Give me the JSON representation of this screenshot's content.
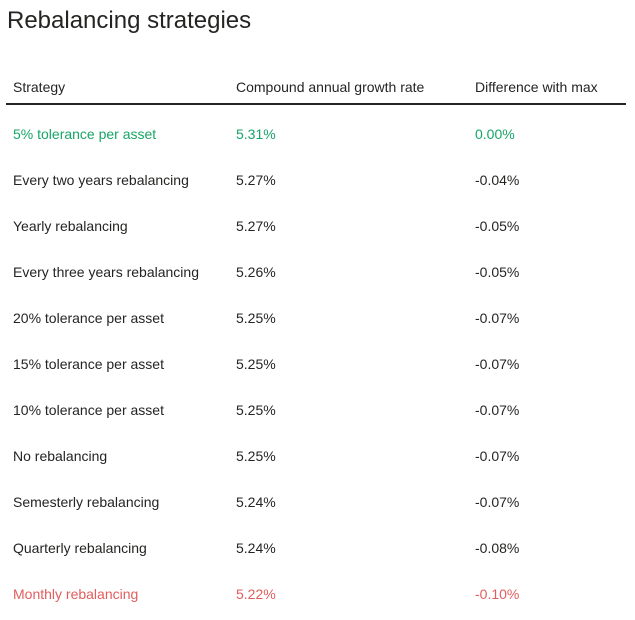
{
  "page": {
    "title": "Rebalancing strategies"
  },
  "colors": {
    "best": "#18a566",
    "worst": "#e25d5d",
    "text": "#252423",
    "divider": "#252423",
    "background": "#ffffff"
  },
  "chart_data": {
    "type": "table",
    "title": "Rebalancing strategies",
    "columns": [
      "Strategy",
      "Compound annual growth rate",
      "Difference with max"
    ],
    "rows": [
      {
        "strategy": "5% tolerance per asset",
        "cagr": "5.31%",
        "diff": "0.00%",
        "highlight": "best"
      },
      {
        "strategy": "Every two years rebalancing",
        "cagr": "5.27%",
        "diff": "-0.04%",
        "highlight": null
      },
      {
        "strategy": "Yearly rebalancing",
        "cagr": "5.27%",
        "diff": "-0.05%",
        "highlight": null
      },
      {
        "strategy": "Every three years rebalancing",
        "cagr": "5.26%",
        "diff": "-0.05%",
        "highlight": null
      },
      {
        "strategy": "20% tolerance per asset",
        "cagr": "5.25%",
        "diff": "-0.07%",
        "highlight": null
      },
      {
        "strategy": "15% tolerance per asset",
        "cagr": "5.25%",
        "diff": "-0.07%",
        "highlight": null
      },
      {
        "strategy": "10% tolerance per asset",
        "cagr": "5.25%",
        "diff": "-0.07%",
        "highlight": null
      },
      {
        "strategy": "No rebalancing",
        "cagr": "5.25%",
        "diff": "-0.07%",
        "highlight": null
      },
      {
        "strategy": "Semesterly rebalancing",
        "cagr": "5.24%",
        "diff": "-0.07%",
        "highlight": null
      },
      {
        "strategy": "Quarterly rebalancing",
        "cagr": "5.24%",
        "diff": "-0.08%",
        "highlight": null
      },
      {
        "strategy": "Monthly rebalancing",
        "cagr": "5.22%",
        "diff": "-0.10%",
        "highlight": "worst"
      }
    ]
  }
}
